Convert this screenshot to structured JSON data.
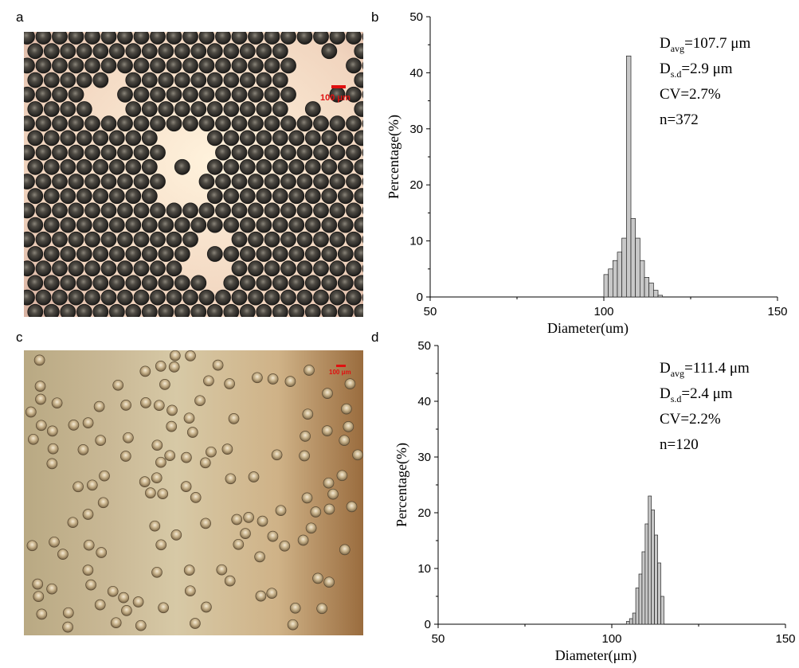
{
  "panels": {
    "a": "a",
    "b": "b",
    "c": "c",
    "d": "d"
  },
  "micrographs": {
    "a": {
      "scale_label": "100 μm",
      "colors": {
        "background": "#f3dcc6",
        "bead": "#3b3a36",
        "scale": "#e01010"
      }
    },
    "c": {
      "scale_label": "100 μm",
      "colors": {
        "background": "#c9b089",
        "bead": "#b49a72",
        "scale": "#e01010"
      }
    }
  },
  "chart_data": [
    {
      "type": "bar",
      "panel": "b",
      "xlabel": "Diameter(um)",
      "ylabel": "Percentage(%)",
      "xlim": [
        50,
        150
      ],
      "ylim": [
        0,
        50
      ],
      "xticks": [
        50,
        100,
        150
      ],
      "yticks": [
        0,
        10,
        20,
        30,
        40,
        50
      ],
      "bin_width": 1.3,
      "x": [
        100,
        101.3,
        102.6,
        103.9,
        105.2,
        106.5,
        107.8,
        109.1,
        110.4,
        111.7,
        113.0,
        114.3,
        115.6
      ],
      "values": [
        4,
        5,
        6.5,
        8,
        10.5,
        43,
        14,
        10.5,
        6.5,
        3.5,
        2.5,
        1.2,
        0.3
      ],
      "stats": {
        "d_avg_prefix": "D",
        "d_avg_sub": "avg",
        "d_avg_value": "=107.7 μm",
        "d_sd_prefix": "D",
        "d_sd_sub": "s.d",
        "d_sd_value": "=2.9 μm",
        "cv": "CV=2.7%",
        "n": "n=372"
      },
      "colors": {
        "bar_fill": "#c8c8c8",
        "bar_stroke": "#222222"
      }
    },
    {
      "type": "bar",
      "panel": "d",
      "xlabel": "Diameter(μm)",
      "ylabel": "Percentage(%)",
      "xlim": [
        50,
        150
      ],
      "ylim": [
        0,
        50
      ],
      "xticks": [
        50,
        100,
        150
      ],
      "yticks": [
        0,
        10,
        20,
        30,
        40,
        50
      ],
      "bin_width": 0.9,
      "x": [
        104.2,
        105.1,
        106.0,
        106.9,
        107.8,
        108.7,
        109.6,
        110.5,
        111.4,
        112.3,
        113.2,
        114.1,
        115.0
      ],
      "values": [
        0.5,
        1,
        2,
        6.5,
        9,
        13,
        18,
        23,
        20.5,
        16,
        11,
        5,
        0
      ],
      "stats": {
        "d_avg_prefix": "D",
        "d_avg_sub": "avg",
        "d_avg_value": "=111.4 μm",
        "d_sd_prefix": "D",
        "d_sd_sub": "s.d",
        "d_sd_value": "=2.4 μm",
        "cv": "CV=2.2%",
        "n": "n=120"
      },
      "colors": {
        "bar_fill": "#c8c8c8",
        "bar_stroke": "#222222"
      }
    }
  ]
}
